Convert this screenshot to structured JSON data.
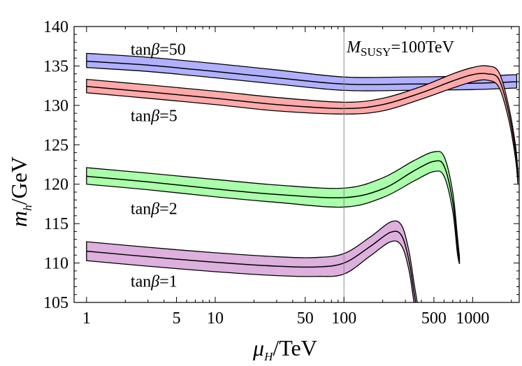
{
  "chart_data": {
    "type": "area",
    "title": "",
    "xlabel": {
      "main": "μ",
      "sub": "H",
      "rest": "/TeV"
    },
    "ylabel": {
      "main": "m",
      "sub": "h",
      "rest": "/GeV"
    },
    "xscale": "log",
    "xlim": [
      0.8,
      2300
    ],
    "ylim": [
      105,
      140
    ],
    "xticks": [
      {
        "v": 1,
        "label": "1"
      },
      {
        "v": 5,
        "label": "5"
      },
      {
        "v": 10,
        "label": "10"
      },
      {
        "v": 50,
        "label": "50"
      },
      {
        "v": 100,
        "label": "100"
      },
      {
        "v": 500,
        "label": "500"
      },
      {
        "v": 1000,
        "label": "1000"
      }
    ],
    "xminor": [
      2,
      3,
      4,
      6,
      7,
      8,
      9,
      20,
      30,
      40,
      60,
      70,
      80,
      90,
      200,
      300,
      400,
      600,
      700,
      800,
      900,
      2000
    ],
    "yticks": [
      105,
      110,
      115,
      120,
      125,
      130,
      135,
      140
    ],
    "annotation": {
      "main": "M",
      "sub": "SUSY",
      "rest": "=100TeV"
    },
    "reference_line_x": 100,
    "grid": false,
    "series": [
      {
        "name": "tanβ=50",
        "label": {
          "pre": "tan",
          "greek": "β",
          "post": "=50"
        },
        "label_at": {
          "x": 2.2,
          "y": 136.4
        },
        "color": "#b0b0ff",
        "x": [
          1,
          3,
          10,
          30,
          100,
          300,
          1000,
          2200
        ],
        "upper": [
          136.6,
          136.1,
          135.3,
          134.5,
          133.6,
          133.6,
          133.7,
          133.9
        ],
        "central": [
          135.6,
          135.1,
          134.3,
          133.5,
          132.7,
          132.7,
          132.8,
          133.0
        ],
        "lower": [
          134.8,
          134.3,
          133.5,
          132.7,
          131.9,
          131.9,
          132.0,
          132.2
        ]
      },
      {
        "name": "tanβ=5",
        "label": {
          "pre": "tan",
          "greek": "β",
          "post": "=5"
        },
        "label_at": {
          "x": 2.2,
          "y": 128.0
        },
        "color": "#ffaaaa",
        "x": [
          1,
          3,
          10,
          30,
          100,
          200,
          400,
          700,
          1000,
          1300,
          1600,
          1900,
          2150,
          2250
        ],
        "upper": [
          133.3,
          132.6,
          131.8,
          131.0,
          130.4,
          130.9,
          132.4,
          134.0,
          134.8,
          135.0,
          134.2,
          130.0,
          125.0,
          121.5
        ],
        "central": [
          132.4,
          131.7,
          130.9,
          130.1,
          129.6,
          130.1,
          131.6,
          133.1,
          133.9,
          134.0,
          133.3,
          129.2,
          124.2,
          120.8
        ],
        "lower": [
          131.6,
          130.9,
          130.1,
          129.3,
          128.9,
          129.3,
          130.8,
          132.2,
          133.0,
          133.2,
          132.3,
          128.3,
          123.3,
          120.0
        ]
      },
      {
        "name": "tanβ=2",
        "label": {
          "pre": "tan",
          "greek": "β",
          "post": "=2"
        },
        "label_at": {
          "x": 2.2,
          "y": 116.2
        },
        "color": "#aaffaa",
        "x": [
          1,
          3,
          10,
          30,
          100,
          200,
          350,
          500,
          600,
          700,
          760,
          790
        ],
        "upper": [
          122.1,
          121.4,
          120.6,
          119.9,
          119.5,
          120.8,
          123.0,
          124.1,
          123.5,
          119.0,
          113.5,
          110.8
        ],
        "central": [
          121.0,
          120.3,
          119.4,
          118.7,
          118.3,
          119.4,
          121.7,
          122.9,
          122.3,
          117.8,
          112.4,
          109.9
        ],
        "lower": [
          120.0,
          119.3,
          118.4,
          117.7,
          117.1,
          118.3,
          120.4,
          121.6,
          121.0,
          116.6,
          111.3,
          109.9
        ]
      },
      {
        "name": "tanβ=1",
        "label": {
          "pre": "tan",
          "greek": "β",
          "post": "=1"
        },
        "label_at": {
          "x": 2.2,
          "y": 107.0
        },
        "color": "#ddb0dd",
        "x": [
          1,
          3,
          10,
          30,
          60,
          100,
          160,
          230,
          280,
          320,
          350,
          380
        ],
        "upper": [
          112.7,
          112.0,
          111.3,
          110.8,
          110.7,
          111.2,
          113.3,
          115.2,
          114.8,
          111.5,
          107.5,
          104.0
        ],
        "central": [
          111.5,
          110.8,
          110.1,
          109.6,
          109.5,
          110.0,
          112.1,
          113.9,
          113.5,
          110.3,
          106.3,
          102.8
        ],
        "lower": [
          110.3,
          109.6,
          108.9,
          108.4,
          108.3,
          108.6,
          110.9,
          112.7,
          112.2,
          109.1,
          105.0,
          101.6
        ]
      }
    ]
  }
}
